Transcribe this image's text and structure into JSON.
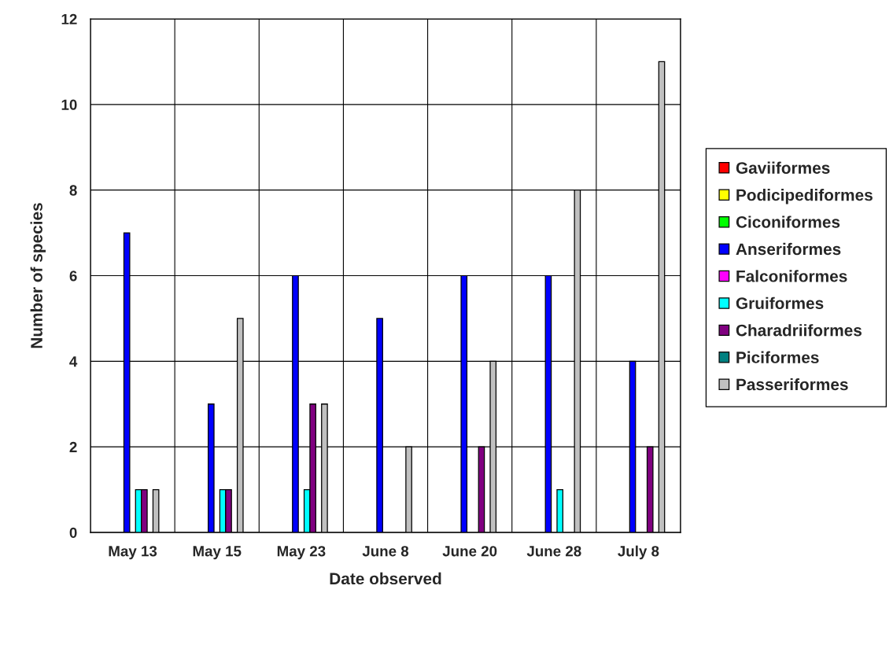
{
  "chart_data": {
    "type": "bar",
    "xlabel": "Date observed",
    "ylabel": "Number of species",
    "categories": [
      "May 13",
      "May 15",
      "May 23",
      "June 8",
      "June 20",
      "June 28",
      "July 8"
    ],
    "series": [
      {
        "name": "Gaviiformes",
        "color": "#ff0000",
        "values": [
          null,
          null,
          null,
          null,
          null,
          null,
          null
        ]
      },
      {
        "name": "Podicipediformes",
        "color": "#ffff00",
        "values": [
          null,
          null,
          null,
          null,
          null,
          null,
          null
        ]
      },
      {
        "name": "Ciconiformes",
        "color": "#00ff00",
        "values": [
          null,
          null,
          null,
          null,
          null,
          null,
          null
        ]
      },
      {
        "name": "Anseriformes",
        "color": "#0000ff",
        "values": [
          7,
          3,
          6,
          5,
          6,
          6,
          4
        ]
      },
      {
        "name": "Falconiformes",
        "color": "#ff00ff",
        "values": [
          null,
          null,
          null,
          null,
          null,
          null,
          null
        ]
      },
      {
        "name": "Gruiformes",
        "color": "#00ffff",
        "values": [
          1,
          1,
          1,
          null,
          null,
          1,
          null
        ]
      },
      {
        "name": "Charadriiformes",
        "color": "#800080",
        "values": [
          1,
          1,
          3,
          null,
          2,
          null,
          2
        ]
      },
      {
        "name": "Piciformes",
        "color": "#008080",
        "values": [
          null,
          null,
          null,
          null,
          null,
          null,
          null
        ]
      },
      {
        "name": "Passeriformes",
        "color": "#c0c0c0",
        "values": [
          1,
          5,
          3,
          2,
          4,
          8,
          11
        ]
      }
    ],
    "ylim": [
      0,
      12
    ],
    "yticks": [
      0,
      2,
      4,
      6,
      8,
      10,
      12
    ],
    "grid": true,
    "legend": "right"
  }
}
